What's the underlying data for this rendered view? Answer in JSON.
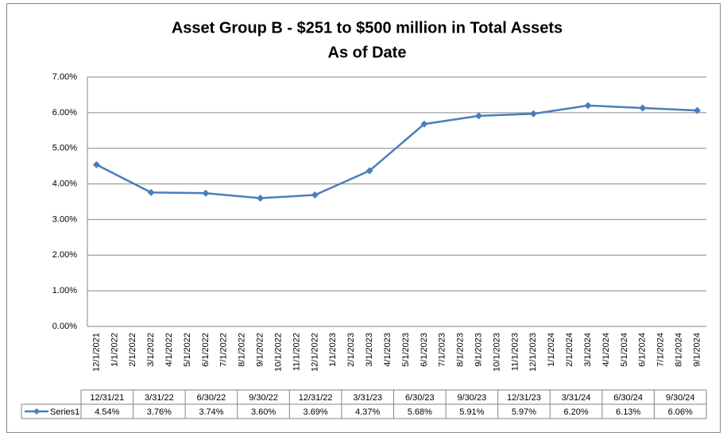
{
  "chart_data": {
    "type": "line",
    "title": "Asset Group B - $251 to $500 million in Total Assets",
    "subtitle": "As of Date",
    "categories": [
      "12/1/2021",
      "1/1/2022",
      "2/1/2022",
      "3/1/2022",
      "4/1/2022",
      "5/1/2022",
      "6/1/2022",
      "7/1/2022",
      "8/1/2022",
      "9/1/2022",
      "10/1/2022",
      "11/1/2022",
      "12/1/2022",
      "1/1/2023",
      "2/1/2023",
      "3/1/2023",
      "4/1/2023",
      "5/1/2023",
      "6/1/2023",
      "7/1/2023",
      "8/1/2023",
      "9/1/2023",
      "10/1/2023",
      "11/1/2023",
      "12/1/2023",
      "1/1/2024",
      "2/1/2024",
      "3/1/2024",
      "4/1/2024",
      "5/1/2024",
      "6/1/2024",
      "7/1/2024",
      "8/1/2024",
      "9/1/2024"
    ],
    "x": [
      "12/31/21",
      "3/31/22",
      "6/30/22",
      "9/30/22",
      "12/31/22",
      "3/31/23",
      "6/30/23",
      "9/30/23",
      "12/31/23",
      "3/31/24",
      "6/30/24",
      "9/30/24"
    ],
    "series": [
      {
        "name": "Series1",
        "color": "#4a7ebb",
        "values": [
          4.54,
          3.76,
          3.74,
          3.6,
          3.69,
          4.37,
          5.68,
          5.91,
          5.97,
          6.2,
          6.13,
          6.06
        ],
        "value_labels": [
          "4.54%",
          "3.76%",
          "3.74%",
          "3.60%",
          "3.69%",
          "4.37%",
          "5.68%",
          "5.91%",
          "5.97%",
          "6.20%",
          "6.13%",
          "6.06%"
        ]
      }
    ],
    "ylim": [
      0,
      7
    ],
    "yticks": [
      {
        "value": 0,
        "label": "0.00%"
      },
      {
        "value": 1,
        "label": "1.00%"
      },
      {
        "value": 2,
        "label": "2.00%"
      },
      {
        "value": 3,
        "label": "3.00%"
      },
      {
        "value": 4,
        "label": "4.00%"
      },
      {
        "value": 5,
        "label": "5.00%"
      },
      {
        "value": 6,
        "label": "6.00%"
      },
      {
        "value": 7,
        "label": "7.00%"
      }
    ],
    "grid": true,
    "data_table": true
  }
}
